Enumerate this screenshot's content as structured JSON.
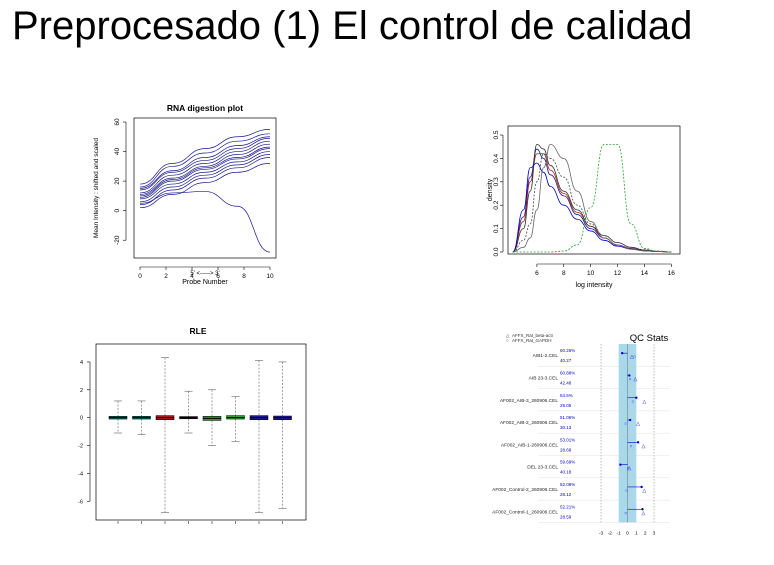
{
  "slide": {
    "title": "Preprocesado (1) El control de calidad"
  },
  "colors": {
    "navy": "#1a1a8c",
    "blue": "#0000cc",
    "green": "#2aa02a",
    "red": "#b01818",
    "qc_fill": "#a8d8ea"
  },
  "chart_data": [
    {
      "type": "line",
      "title": "RNA digestion plot",
      "xlabel": "5' <-----> 3'",
      "xlabel2": "Probe Number",
      "ylabel": "Mean Intensity : shifted and scaled",
      "xlim": [
        0,
        10
      ],
      "ylim": [
        -30,
        60
      ],
      "xticks": [
        0,
        2,
        4,
        6,
        8,
        10
      ],
      "xtick_labels": [
        "0",
        "2",
        "4",
        "6",
        "8",
        "10"
      ],
      "yticks": [
        -20,
        0,
        20,
        40,
        60
      ],
      "ytick_labels": [
        "-20",
        "0",
        "20",
        "40",
        "60"
      ],
      "x": [
        0,
        2.5,
        5,
        7.5,
        10
      ],
      "series": [
        {
          "values": [
            18,
            32,
            42,
            50,
            55
          ]
        },
        {
          "values": [
            16,
            30,
            39,
            47,
            52
          ]
        },
        {
          "values": [
            15,
            27,
            36,
            44,
            50
          ]
        },
        {
          "values": [
            14,
            26,
            34,
            42,
            49
          ]
        },
        {
          "values": [
            12,
            24,
            32,
            40,
            47
          ]
        },
        {
          "values": [
            11,
            22,
            30,
            38,
            45
          ]
        },
        {
          "values": [
            10,
            21,
            29,
            36,
            43
          ]
        },
        {
          "values": [
            9,
            20,
            28,
            35,
            42
          ]
        },
        {
          "values": [
            8,
            18,
            26,
            33,
            40
          ]
        },
        {
          "values": [
            6,
            16,
            24,
            31,
            38
          ]
        },
        {
          "values": [
            4,
            14,
            22,
            29,
            36
          ]
        },
        {
          "values": [
            2,
            11,
            19,
            26,
            32
          ]
        },
        {
          "values": [
            5,
            12,
            13,
            3,
            -28
          ]
        }
      ]
    },
    {
      "type": "line",
      "title": "",
      "xlabel": "log intensity",
      "ylabel": "density",
      "xlim": [
        4,
        16.5
      ],
      "ylim": [
        0,
        0.53
      ],
      "xticks": [
        6,
        8,
        10,
        12,
        14,
        16
      ],
      "xtick_labels": [
        "6",
        "8",
        "10",
        "12",
        "14",
        "16"
      ],
      "yticks": [
        0,
        0.1,
        0.2,
        0.3,
        0.4,
        0.5
      ],
      "ytick_labels": [
        "0.0",
        "0.1",
        "0.2",
        "0.3",
        "0.4",
        "0.5"
      ],
      "x": [
        4.2,
        5,
        5.5,
        6,
        6.5,
        7,
        8,
        9,
        10,
        11,
        12,
        13,
        14,
        15,
        16
      ],
      "series": [
        {
          "color": "#1a1a8c",
          "values": [
            0,
            0.15,
            0.32,
            0.44,
            0.4,
            0.33,
            0.24,
            0.16,
            0.1,
            0.06,
            0.03,
            0.015,
            0.006,
            0.002,
            0
          ]
        },
        {
          "color": "#b01818",
          "values": [
            0,
            0.13,
            0.3,
            0.42,
            0.42,
            0.35,
            0.25,
            0.17,
            0.11,
            0.06,
            0.03,
            0.014,
            0.005,
            0.002,
            0
          ]
        },
        {
          "color": "#333333",
          "values": [
            0,
            0.1,
            0.26,
            0.46,
            0.44,
            0.37,
            0.26,
            0.18,
            0.11,
            0.07,
            0.04,
            0.02,
            0.008,
            0.003,
            0
          ]
        },
        {
          "color": "#0000cc",
          "values": [
            0,
            0.18,
            0.36,
            0.38,
            0.34,
            0.28,
            0.2,
            0.14,
            0.09,
            0.05,
            0.025,
            0.012,
            0.005,
            0.002,
            0
          ]
        },
        {
          "color": "#444444",
          "values": [
            0,
            0.05,
            0.12,
            0.3,
            0.42,
            0.4,
            0.32,
            0.2,
            0.12,
            0.07,
            0.04,
            0.02,
            0.01,
            0.004,
            0
          ]
        },
        {
          "color": "#666666",
          "values": [
            0,
            0.02,
            0.06,
            0.18,
            0.36,
            0.46,
            0.4,
            0.26,
            0.13,
            0.06,
            0.03,
            0.012,
            0.005,
            0.002,
            0
          ]
        },
        {
          "color": "#2aa02a",
          "values": [
            0,
            0,
            0,
            0,
            0,
            0,
            0.004,
            0.03,
            0.19,
            0.46,
            0.46,
            0.12,
            0.015,
            0.002,
            0
          ]
        }
      ]
    },
    {
      "type": "box",
      "title": "RLE",
      "ylim": [
        -7.2,
        5
      ],
      "yticks": [
        -6,
        -4,
        -2,
        0,
        2,
        4
      ],
      "ytick_labels": [
        "-6",
        "-4",
        "-2",
        "0",
        "2",
        "4"
      ],
      "boxes": [
        {
          "color": "#0a6e6e",
          "whisker_low": -1.1,
          "q1": -0.1,
          "median": 0,
          "q3": 0.1,
          "whisker_high": 1.2
        },
        {
          "color": "#0a6e6e",
          "whisker_low": -1.2,
          "q1": -0.1,
          "median": 0,
          "q3": 0.1,
          "whisker_high": 1.2
        },
        {
          "color": "#b01818",
          "whisker_low": -6.8,
          "q1": -0.15,
          "median": 0,
          "q3": 0.15,
          "whisker_high": 4.3
        },
        {
          "color": "#111111",
          "whisker_low": -1.1,
          "q1": -0.08,
          "median": 0,
          "q3": 0.08,
          "whisker_high": 1.9
        },
        {
          "color": "#2aa02a",
          "whisker_low": -2.0,
          "q1": -0.2,
          "median": -0.05,
          "q3": 0.1,
          "whisker_high": 2.0
        },
        {
          "color": "#2aa02a",
          "whisker_low": -1.7,
          "q1": -0.1,
          "median": 0,
          "q3": 0.15,
          "whisker_high": 1.5
        },
        {
          "color": "#1a1a8c",
          "whisker_low": -6.8,
          "q1": -0.15,
          "median": 0,
          "q3": 0.15,
          "whisker_high": 4.1
        },
        {
          "color": "#1a1a8c",
          "whisker_low": -6.5,
          "q1": -0.15,
          "median": 0,
          "q3": 0.12,
          "whisker_high": 4.0
        }
      ]
    },
    {
      "type": "qc",
      "title": "QC Stats",
      "legend": [
        "AFFX_Rat_beta-acti",
        "AFFX_Rat_GAPDH"
      ],
      "xticks": [
        -3,
        -2,
        -1,
        0,
        1,
        2,
        3
      ],
      "xtick_labels": [
        "-3",
        "-2",
        "-1",
        "0",
        "1",
        "2",
        "3"
      ],
      "xlim": [
        -3,
        3
      ],
      "rows": [
        {
          "label": "AIB1-2.CEL",
          "pct": "60.26%",
          "bg": "40.27",
          "bar": -0.6,
          "tri": 0.5,
          "circ": 0.8
        },
        {
          "label": "AIB 23-3.CEL",
          "pct": "60.88%",
          "bg": "42.48",
          "bar": 0.2,
          "tri": 0.9,
          "circ": 0.3
        },
        {
          "label": "AF002_AIB-3_260906.CEL",
          "pct": "54.5%",
          "bg": "29.05",
          "bar": 1.0,
          "tri": 1.9,
          "circ": 0.6
        },
        {
          "label": "AF002_AIB-2_260906.CEL",
          "pct": "51.06%",
          "bg": "30.13",
          "bar": 0.3,
          "tri": 1.2,
          "circ": -0.2
        },
        {
          "label": "AF002_AIB-1-260906.CEL",
          "pct": "53.01%",
          "bg": "28.68",
          "bar": 1.2,
          "tri": 1.8,
          "circ": 0.4
        },
        {
          "label": "DEL 23-3.CEL",
          "pct": "59.69%",
          "bg": "40.18",
          "bar": -0.8,
          "tri": 0.2,
          "circ": 0.1
        },
        {
          "label": "AF002_Control-2_260906.CEL",
          "pct": "52.08%",
          "bg": "28.12",
          "bar": 1.6,
          "tri": 1.9,
          "circ": -0.1
        },
        {
          "label": "AF002_Control-1_260906.CEL",
          "pct": "52.21%",
          "bg": "28.59",
          "bar": 1.7,
          "tri": 1.8,
          "circ": -0.2
        }
      ]
    }
  ]
}
